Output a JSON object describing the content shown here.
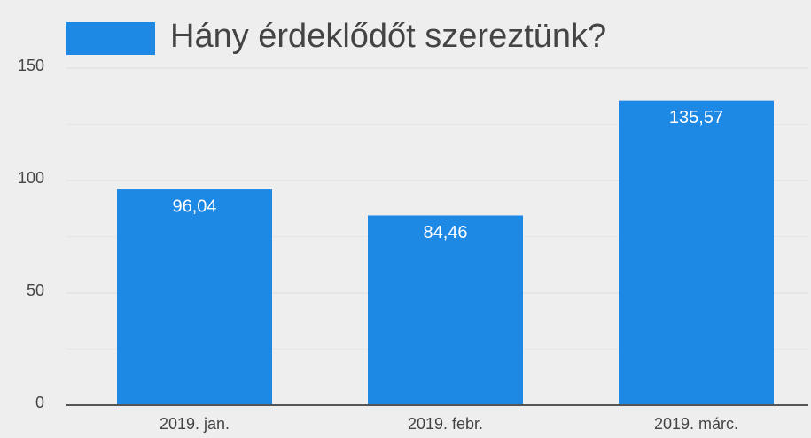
{
  "chart_data": {
    "type": "bar",
    "categories": [
      "2019. jan.",
      "2019. febr.",
      "2019. márc."
    ],
    "series": [
      {
        "name": "Hány érdeklődőt szereztünk?",
        "color": "#1e88e5",
        "values": [
          96.04,
          84.46,
          135.57
        ],
        "value_labels": [
          "96,04",
          "84,46",
          "135,57"
        ]
      }
    ],
    "ylim": [
      0,
      150
    ],
    "yticks": [
      0,
      50,
      100,
      150
    ],
    "minor_yticks": [
      25,
      75,
      125
    ],
    "grid": true,
    "legend": "top"
  }
}
